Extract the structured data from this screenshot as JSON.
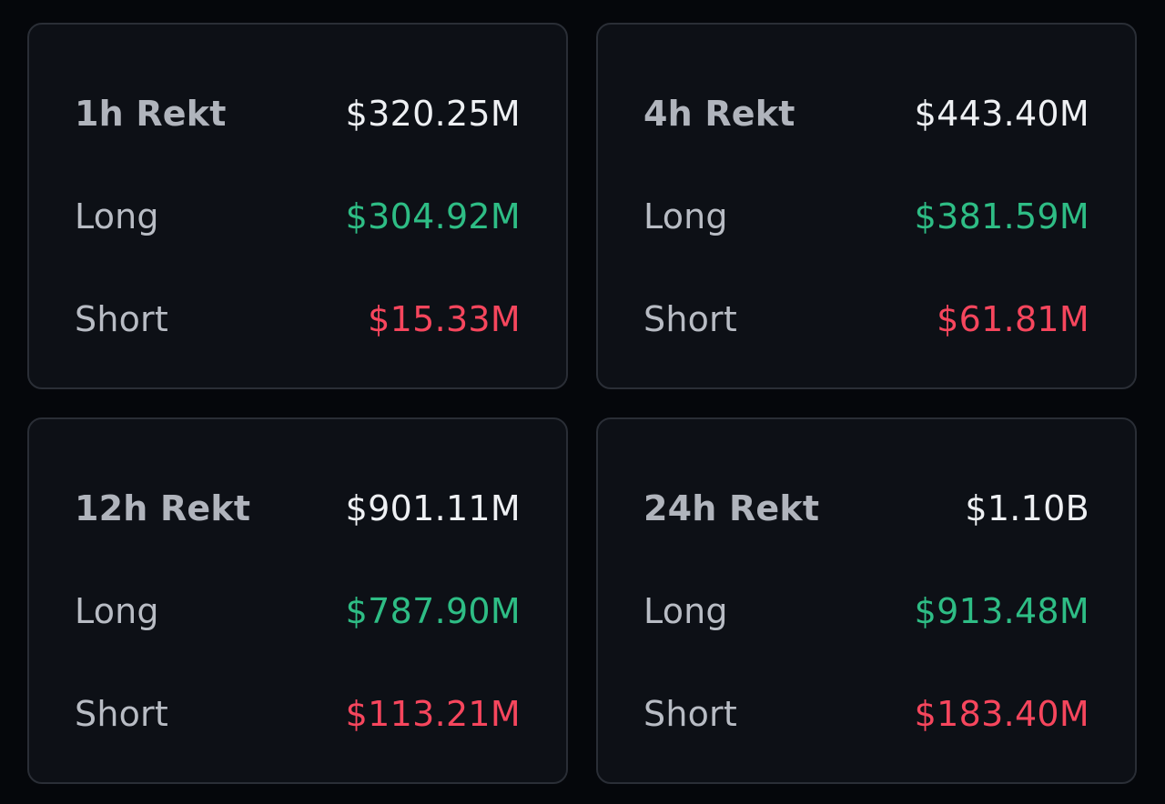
{
  "colors": {
    "background": "#05070b",
    "card": "#0d1016",
    "border": "#2a2e36",
    "label": "#b8bcc4",
    "total": "#eef0f3",
    "long": "#2ebd85",
    "short": "#f6465d"
  },
  "cards": [
    {
      "title": "1h Rekt",
      "total": "$320.25M",
      "long_label": "Long",
      "long": "$304.92M",
      "short_label": "Short",
      "short": "$15.33M"
    },
    {
      "title": "4h Rekt",
      "total": "$443.40M",
      "long_label": "Long",
      "long": "$381.59M",
      "short_label": "Short",
      "short": "$61.81M"
    },
    {
      "title": "12h Rekt",
      "total": "$901.11M",
      "long_label": "Long",
      "long": "$787.90M",
      "short_label": "Short",
      "short": "$113.21M"
    },
    {
      "title": "24h Rekt",
      "total": "$1.10B",
      "long_label": "Long",
      "long": "$913.48M",
      "short_label": "Short",
      "short": "$183.40M"
    }
  ]
}
